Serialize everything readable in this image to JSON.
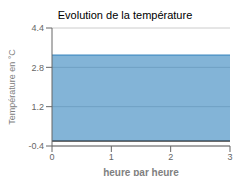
{
  "chart_data": {
    "type": "area",
    "title": "Evolution de la température",
    "xlabel": "heure par heure",
    "ylabel": "Température en °C",
    "x": [
      0,
      3
    ],
    "values": [
      3.3,
      3.3
    ],
    "fill_bottom": -0.2,
    "xlim": [
      0,
      3
    ],
    "ylim": [
      -0.4,
      4.4
    ],
    "xticks": [
      0,
      1,
      2,
      3
    ],
    "yticks": [
      -0.4,
      1.2,
      2.8,
      4.4
    ],
    "grid": true
  }
}
